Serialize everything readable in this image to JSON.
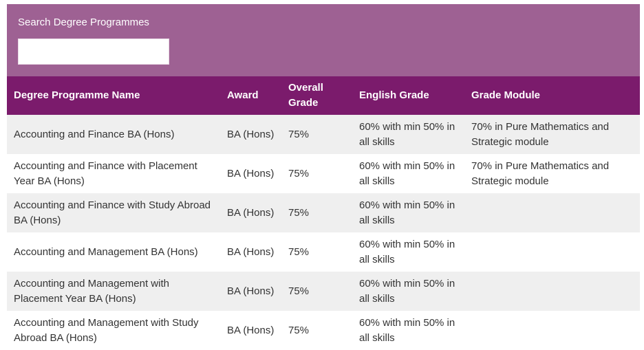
{
  "search": {
    "label": "Search Degree Programmes",
    "value": "",
    "placeholder": ""
  },
  "table": {
    "columns": [
      "Degree Programme Name",
      "Award",
      "Overall Grade",
      "English Grade",
      "Grade Module"
    ],
    "rows": [
      {
        "name": "Accounting and Finance BA (Hons)",
        "award": "BA (Hons)",
        "overall": "75%",
        "english": "60% with min 50% in all skills",
        "module": "70% in Pure Mathematics and Strategic module"
      },
      {
        "name": "Accounting and Finance with Placement Year BA (Hons)",
        "award": "BA (Hons)",
        "overall": "75%",
        "english": "60% with min 50% in all skills",
        "module": "70% in Pure Mathematics and Strategic module"
      },
      {
        "name": "Accounting and Finance with Study Abroad BA (Hons)",
        "award": "BA (Hons)",
        "overall": "75%",
        "english": "60% with min 50% in all skills",
        "module": ""
      },
      {
        "name": "Accounting and Management BA (Hons)",
        "award": "BA (Hons)",
        "overall": "75%",
        "english": "60% with min 50% in all skills",
        "module": ""
      },
      {
        "name": "Accounting and Management with Placement Year BA (Hons)",
        "award": "BA (Hons)",
        "overall": "75%",
        "english": "60% with min 50% in all skills",
        "module": ""
      },
      {
        "name": "Accounting and Management with Study Abroad BA (Hons)",
        "award": "BA (Hons)",
        "overall": "75%",
        "english": "60% with min 50% in all skills",
        "module": ""
      }
    ]
  },
  "colors": {
    "search_panel": "#9e6193",
    "header": "#7b1b6c",
    "row_alt": "#efefef"
  }
}
